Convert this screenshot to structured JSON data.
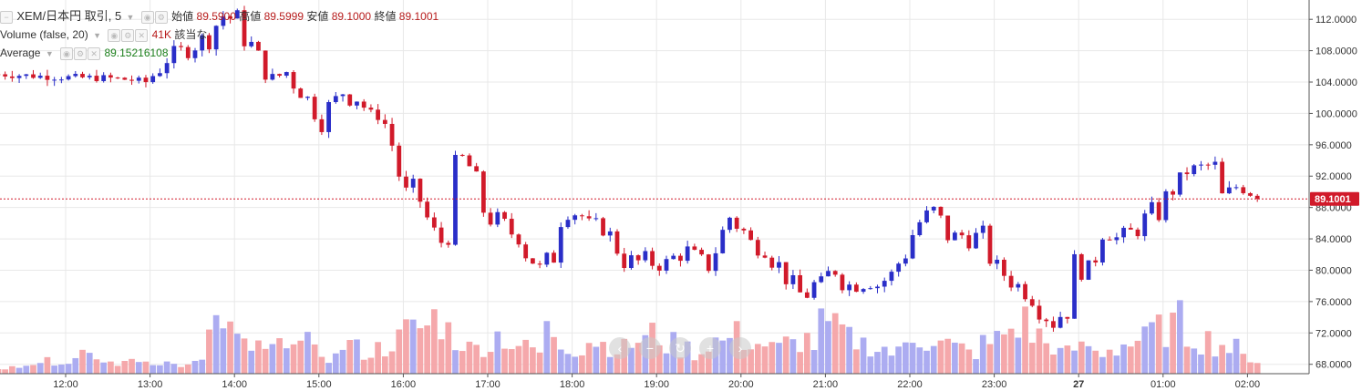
{
  "legend": {
    "main": {
      "symbol": "XEM/日本円 取引, 5",
      "open_label": "始値",
      "open": "89.5900",
      "high_label": "高値",
      "high": "89.5999",
      "low_label": "安値",
      "low": "89.1000",
      "close_label": "終値",
      "close": "89.1001"
    },
    "volume": {
      "name": "Volume (false, 20)",
      "value": "41K",
      "note": "該当な"
    },
    "average": {
      "name": "Average",
      "value": "89.15216108"
    }
  },
  "zoom_controls": [
    "‹",
    "−",
    "↻",
    "+",
    "›"
  ],
  "colors": {
    "up": "#2a2ec8",
    "down": "#d11a2a",
    "up_volume": "#a8a8f0",
    "down_volume": "#f4a3a6",
    "last_price": "#d11a2a",
    "grid": "#e8e8e8"
  },
  "chart_data": {
    "type": "candlestick",
    "title": "XEM/日本円 取引, 5",
    "interval_minutes": 5,
    "ylim": [
      67.5,
      114
    ],
    "yticks": [
      "68.0000",
      "72.0000",
      "76.0000",
      "80.0000",
      "84.0000",
      "88.0000",
      "92.0000",
      "96.0000",
      "100.0000",
      "104.0000",
      "108.0000",
      "112.0000"
    ],
    "xticks": [
      "12:00",
      "13:00",
      "14:00",
      "15:00",
      "16:00",
      "17:00",
      "18:00",
      "19:00",
      "20:00",
      "21:00",
      "22:00",
      "23:00",
      "27",
      "01:00",
      "02:00"
    ],
    "last_price": "89.1001",
    "grid": true,
    "volume_series": "Volume (false, 20)",
    "path": [
      [
        11.2,
        105.0,
        105.0
      ],
      [
        11.6,
        104.8,
        104.8
      ],
      [
        12.0,
        104.6,
        104.6
      ],
      [
        12.5,
        104.5,
        104.4
      ],
      [
        12.75,
        104.3,
        104.2
      ],
      [
        12.95,
        104.0,
        104.0
      ],
      [
        13.0,
        104.5,
        105.5
      ],
      [
        13.2,
        107.0,
        107.5
      ],
      [
        13.5,
        108.5,
        109.0
      ],
      [
        13.7,
        110.0,
        110.5
      ],
      [
        13.85,
        112.5,
        113.0
      ],
      [
        14.0,
        112.0,
        112.0
      ],
      [
        14.15,
        109.5,
        109.0
      ],
      [
        14.3,
        106.0,
        105.5
      ],
      [
        14.45,
        104.0,
        104.5
      ],
      [
        14.6,
        105.5,
        106.5
      ],
      [
        14.75,
        104.0,
        103.0
      ],
      [
        14.9,
        101.0,
        100.5
      ],
      [
        15.0,
        99.0,
        99.5
      ],
      [
        15.15,
        101.0,
        102.0
      ],
      [
        15.3,
        103.0,
        103.5
      ],
      [
        15.45,
        102.0,
        101.0
      ],
      [
        15.6,
        100.0,
        99.5
      ],
      [
        15.75,
        99.5,
        99.0
      ],
      [
        15.85,
        97.0,
        96.0
      ],
      [
        15.95,
        92.0,
        91.0
      ],
      [
        16.05,
        90.0,
        91.0
      ],
      [
        16.2,
        89.0,
        88.0
      ],
      [
        16.3,
        86.0,
        85.0
      ],
      [
        16.45,
        84.0,
        84.5
      ],
      [
        16.55,
        88.0,
        91.5
      ],
      [
        16.65,
        94.0,
        95.5
      ],
      [
        16.8,
        93.0,
        91.5
      ],
      [
        16.9,
        89.0,
        88.0
      ],
      [
        17.0,
        86.5,
        85.5
      ],
      [
        17.1,
        86.0,
        86.5
      ],
      [
        17.25,
        85.0,
        84.0
      ],
      [
        17.4,
        83.5,
        84.5
      ],
      [
        17.5,
        82.0,
        81.0
      ],
      [
        17.6,
        79.5,
        80.0
      ],
      [
        17.75,
        81.0,
        83.0
      ],
      [
        17.85,
        86.0,
        87.5
      ],
      [
        18.0,
        88.0,
        88.5
      ],
      [
        18.1,
        87.0,
        85.5
      ],
      [
        18.25,
        86.0,
        85.5
      ],
      [
        18.4,
        85.0,
        84.5
      ],
      [
        18.5,
        83.5,
        82.5
      ],
      [
        18.65,
        81.0,
        80.0
      ],
      [
        18.75,
        81.0,
        82.0
      ],
      [
        18.9,
        81.0,
        80.0
      ],
      [
        19.1,
        80.5,
        81.0
      ],
      [
        19.25,
        82.0,
        83.0
      ],
      [
        19.4,
        82.5,
        81.5
      ],
      [
        19.6,
        81.0,
        82.0
      ],
      [
        19.75,
        84.0,
        86.0
      ],
      [
        19.85,
        87.0,
        86.5
      ],
      [
        20.0,
        85.5,
        84.0
      ],
      [
        20.15,
        83.0,
        83.0
      ],
      [
        20.3,
        82.5,
        82.0
      ],
      [
        20.45,
        80.5,
        80.0
      ],
      [
        20.55,
        79.0,
        78.0
      ],
      [
        20.7,
        77.0,
        76.5
      ],
      [
        20.9,
        78.0,
        80.0
      ],
      [
        21.1,
        80.5,
        79.5
      ],
      [
        21.25,
        78.0,
        77.5
      ],
      [
        21.45,
        78.5,
        79.0
      ],
      [
        21.6,
        78.0,
        78.5
      ],
      [
        21.8,
        79.5,
        80.0
      ],
      [
        21.95,
        83.0,
        84.5
      ],
      [
        22.1,
        86.0,
        88.0
      ],
      [
        22.3,
        87.5,
        86.0
      ],
      [
        22.45,
        84.5,
        84.0
      ],
      [
        22.6,
        84.5,
        84.5
      ],
      [
        22.85,
        84.0,
        82.5
      ],
      [
        23.0,
        81.0,
        79.5
      ],
      [
        23.15,
        79.0,
        78.5
      ],
      [
        23.35,
        77.5,
        77.0
      ],
      [
        23.5,
        76.0,
        75.5
      ],
      [
        23.65,
        74.0,
        73.0
      ],
      [
        23.85,
        75.0,
        77.5
      ],
      [
        23.95,
        80.0,
        81.5
      ],
      [
        24.15,
        80.0,
        83.0
      ],
      [
        24.3,
        86.0,
        85.5
      ],
      [
        24.45,
        84.0,
        83.5
      ],
      [
        24.6,
        84.5,
        85.0
      ],
      [
        24.75,
        86.0,
        87.0
      ],
      [
        25.0,
        88.0,
        89.5
      ],
      [
        25.15,
        91.5,
        92.5
      ],
      [
        25.35,
        93.0,
        93.0
      ],
      [
        25.6,
        93.5,
        92.5
      ],
      [
        25.7,
        89.0,
        89.5
      ],
      [
        25.9,
        91.0,
        91.0
      ],
      [
        26.05,
        90.0,
        89.6
      ],
      [
        26.15,
        89.59,
        89.1
      ]
    ],
    "volume_levels": [
      0.05,
      0.15,
      0.35,
      0.55,
      0.25,
      0.5,
      0.7,
      0.55,
      0.35,
      0.3,
      0.5,
      0.4,
      0.35,
      0.25,
      0.2,
      0.35,
      0.55,
      0.45,
      0.3,
      0.25,
      0.2,
      0.25,
      0.5,
      0.3,
      0.2,
      0.15,
      0.3,
      0.25,
      0.2,
      0.25,
      0.35,
      0.45,
      0.5,
      0.6,
      0.45,
      0.35,
      0.25,
      0.3,
      0.4,
      0.3,
      0.25,
      0.2,
      0.45,
      0.3,
      0.25,
      0.35,
      0.3,
      0.25,
      0.3,
      0.35,
      0.4,
      0.3,
      0.25,
      0.2,
      0.35,
      0.3,
      0.4,
      0.35,
      0.3,
      0.25,
      0.3,
      0.35,
      0.3,
      0.5,
      0.45,
      0.35,
      0.3,
      0.25,
      0.2,
      0.3,
      0.4,
      0.35,
      0.3,
      0.25,
      0.2,
      0.3,
      0.35,
      0.45,
      0.55,
      0.4,
      0.3,
      0.2,
      0.25,
      0.3,
      0.2,
      0.25,
      0.3,
      0.35,
      0.45,
      0.5,
      0.55,
      0.4,
      0.35,
      0.3,
      0.25,
      0.15,
      0.1
    ]
  }
}
